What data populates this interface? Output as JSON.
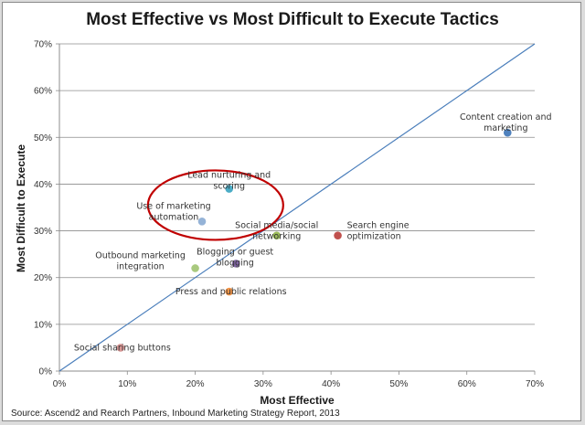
{
  "chart_data": {
    "type": "scatter",
    "title": "Most Effective vs Most Difficult to Execute Tactics",
    "xlabel": "Most Effective",
    "ylabel": "Most Difficult to Execute",
    "xlim": [
      0,
      70
    ],
    "ylim": [
      0,
      70
    ],
    "x_ticks": [
      "0%",
      "10%",
      "20%",
      "30%",
      "40%",
      "50%",
      "60%",
      "70%"
    ],
    "y_ticks": [
      "0%",
      "10%",
      "20%",
      "30%",
      "40%",
      "50%",
      "60%",
      "70%"
    ],
    "reference_line": {
      "from": [
        0,
        0
      ],
      "to": [
        70,
        70
      ],
      "color": "#4a7ebb"
    },
    "highlight": {
      "shape": "ellipse",
      "color": "#c00000",
      "around": [
        "Lead nurturing and scoring",
        "Use of marketing automation"
      ]
    },
    "points": [
      {
        "x": 66,
        "y": 51,
        "color": "#4f81bd",
        "label_lines": [
          "Content creation and",
          "marketing"
        ]
      },
      {
        "x": 25,
        "y": 39,
        "color": "#4bacc6",
        "label_lines": [
          "Lead nurturing and",
          "scoring"
        ]
      },
      {
        "x": 21,
        "y": 32,
        "color": "#95b3d7",
        "label_lines": [
          "Use of marketing",
          "automation"
        ]
      },
      {
        "x": 32,
        "y": 29,
        "color": "#9bbb59",
        "label_lines": [
          "Social media/social",
          "networking"
        ]
      },
      {
        "x": 41,
        "y": 29,
        "color": "#c0504d",
        "label_lines": [
          "Search engine",
          "optimization"
        ]
      },
      {
        "x": 20,
        "y": 22,
        "color": "#a9c97e",
        "label_lines": [
          "Outbound marketing",
          "integration"
        ]
      },
      {
        "x": 26,
        "y": 23,
        "color": "#8064a2",
        "label_lines": [
          "Blogging or guest",
          "blogging"
        ]
      },
      {
        "x": 25,
        "y": 17,
        "color": "#f79646",
        "label_lines": [
          "Press and public relations"
        ]
      },
      {
        "x": 9,
        "y": 5,
        "color": "#d99694",
        "label_lines": [
          "Social sharing buttons"
        ]
      }
    ]
  },
  "source": "Source: Ascend2 and Rearch Partners, Inbound Marketing Strategy Report, 2013"
}
